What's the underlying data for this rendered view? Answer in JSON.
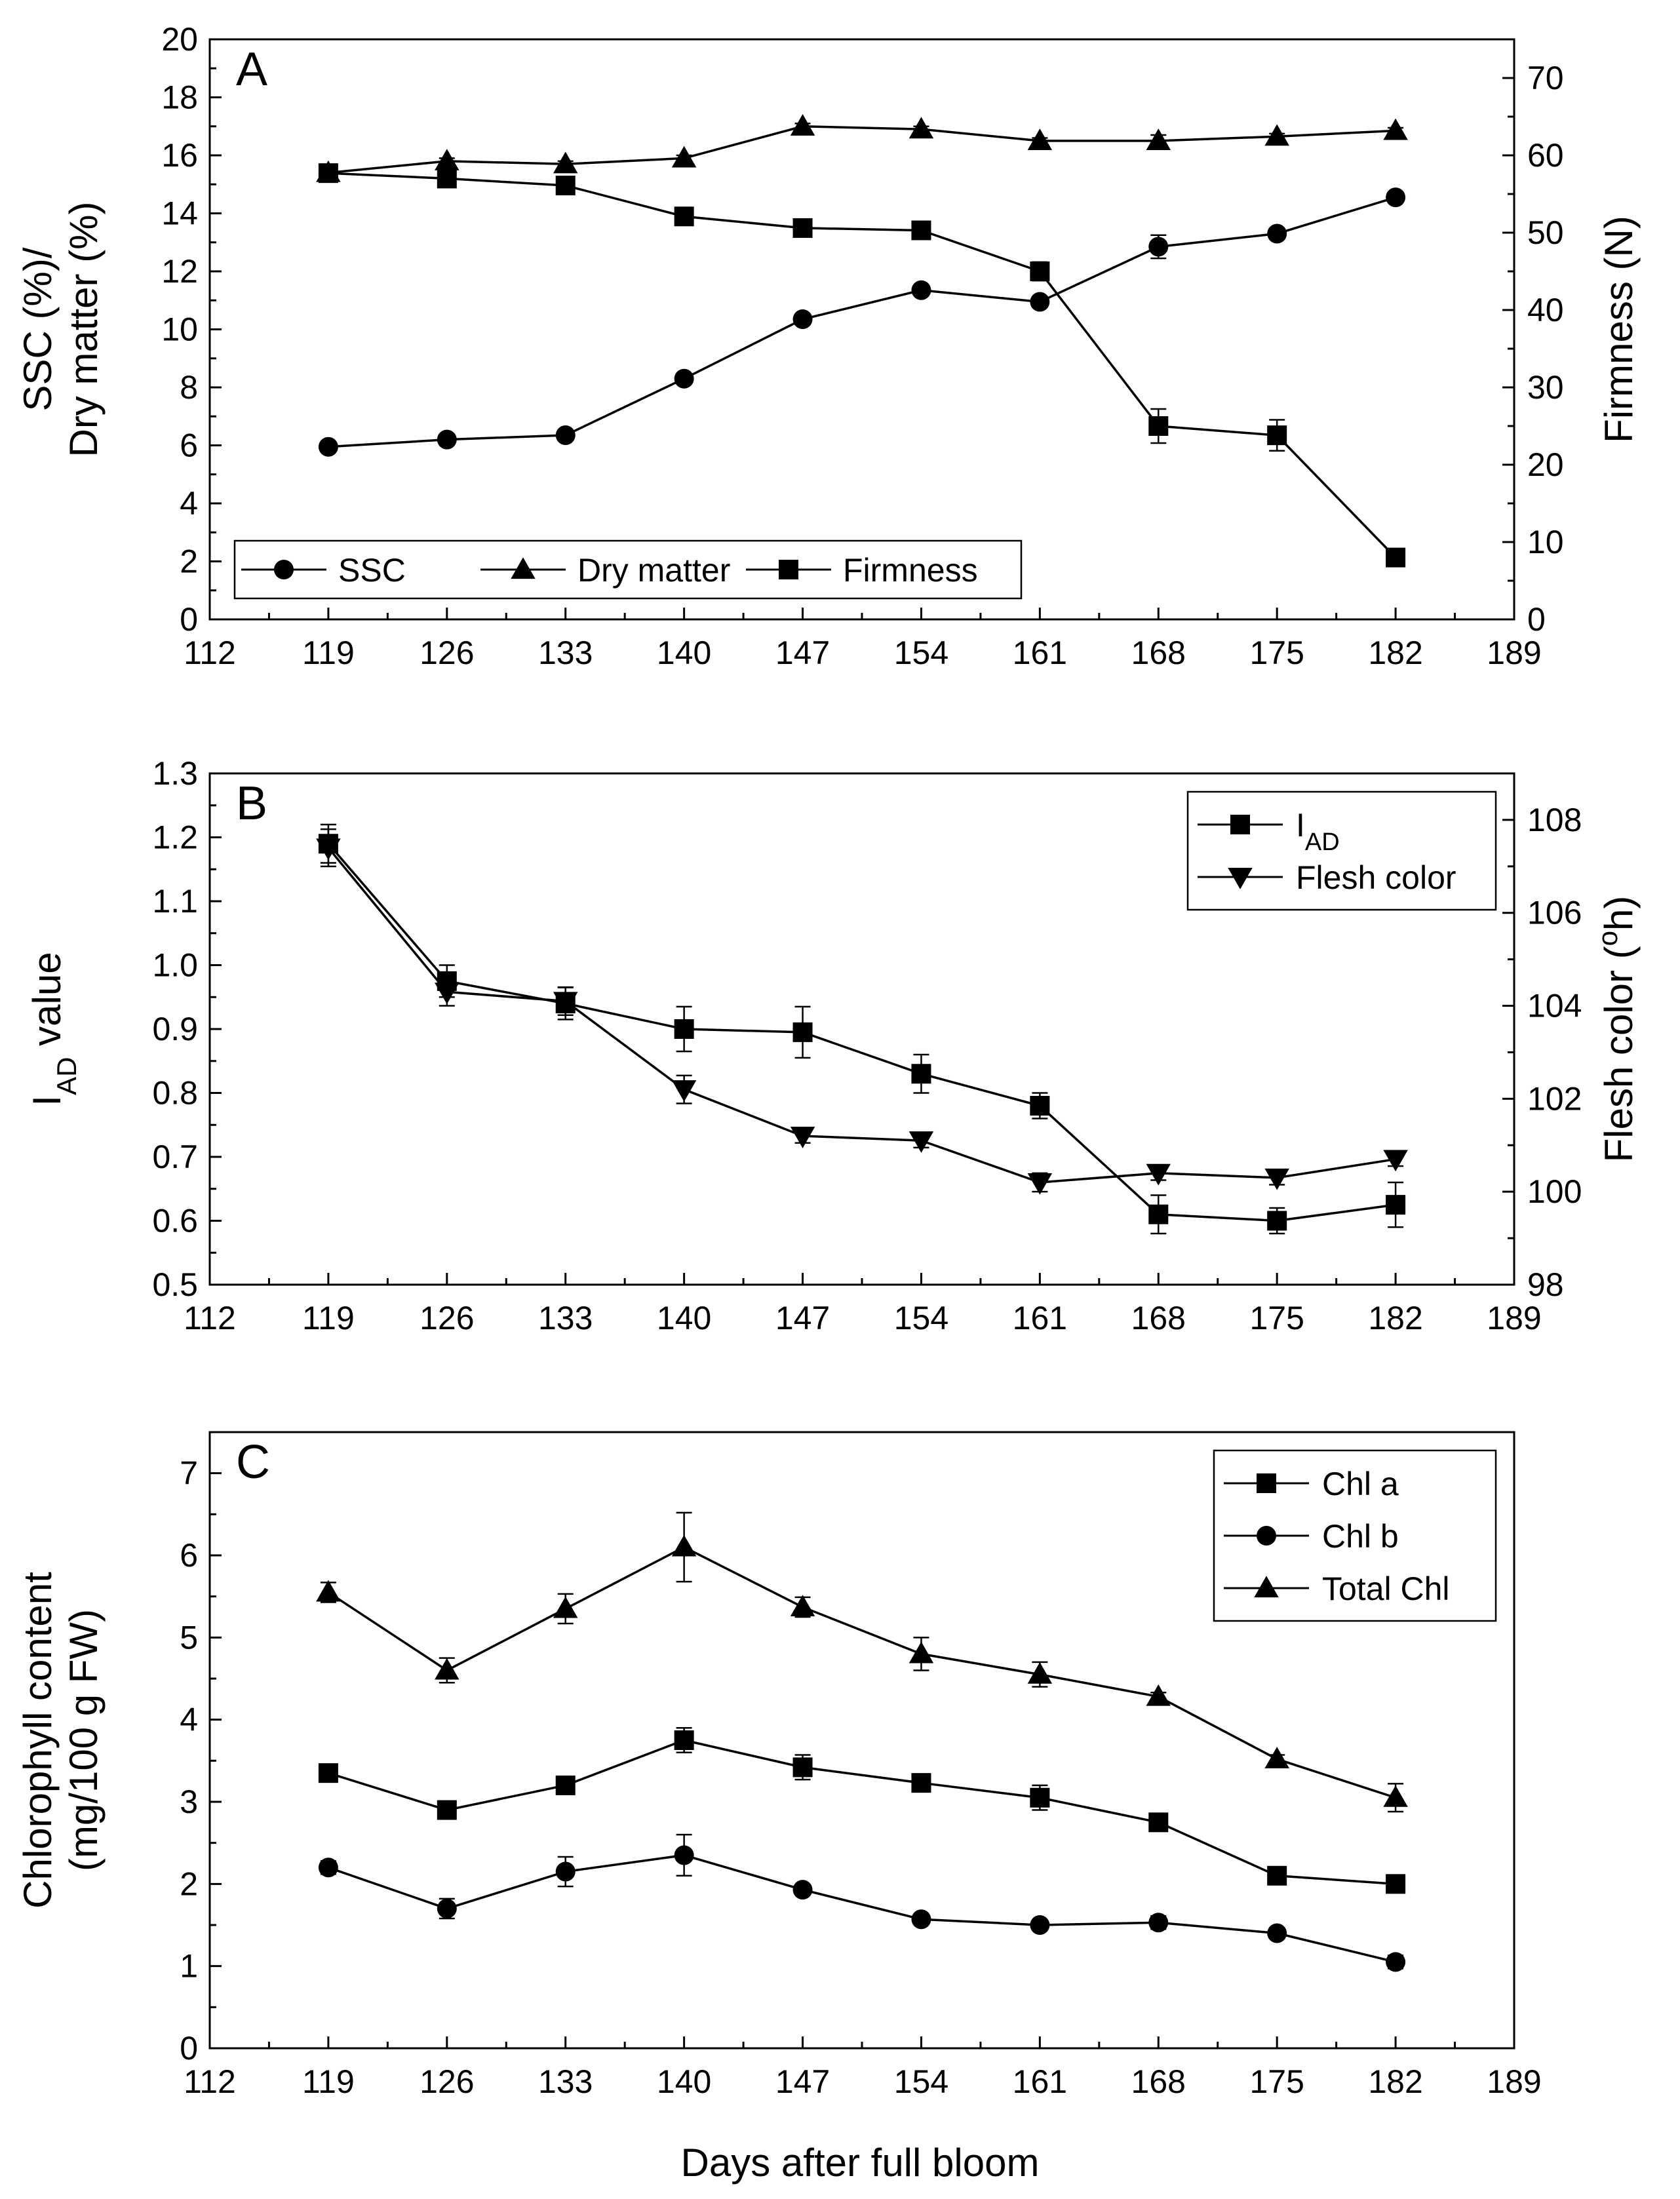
{
  "figure": {
    "shared_xlabel": "Days after full bloom"
  },
  "chart_data": [
    {
      "type": "line",
      "panel": "A",
      "x": [
        119,
        126,
        133,
        140,
        147,
        154,
        161,
        168,
        175,
        182
      ],
      "xlim": [
        112,
        189
      ],
      "xticks": [
        112,
        119,
        126,
        133,
        140,
        147,
        154,
        161,
        168,
        175,
        182,
        189
      ],
      "ylabel_lines": [
        "SSC (%)/",
        "Dry matter (%)"
      ],
      "ylim": [
        0,
        20
      ],
      "yticks": [
        0,
        2,
        4,
        6,
        8,
        10,
        12,
        14,
        16,
        18,
        20
      ],
      "y2label": "Firmness (N)",
      "y2lim": [
        0,
        75
      ],
      "y2ticks": [
        0,
        10,
        20,
        30,
        40,
        50,
        60,
        70
      ],
      "legend_position": "bottom-left",
      "legend_layout": "row",
      "series": [
        {
          "name": "SSC",
          "marker": "circle",
          "axis": "left",
          "values": [
            5.95,
            6.2,
            6.35,
            8.3,
            10.35,
            11.35,
            10.95,
            12.85,
            13.3,
            14.55
          ],
          "errors": [
            0.1,
            0.1,
            0.1,
            0.15,
            0.15,
            0.15,
            0.15,
            0.4,
            0.15,
            0.15
          ]
        },
        {
          "name": "Dry matter",
          "marker": "triangle-up",
          "axis": "left",
          "values": [
            15.4,
            15.8,
            15.7,
            15.9,
            17.0,
            16.9,
            16.5,
            16.5,
            16.65,
            16.85
          ],
          "errors": [
            0.1,
            0.1,
            0.1,
            0.1,
            0.1,
            0.1,
            0.1,
            0.2,
            0.1,
            0.1
          ]
        },
        {
          "name": "Firmness",
          "marker": "square",
          "axis": "right",
          "values": [
            57.7,
            57.0,
            56.1,
            52.1,
            50.6,
            50.3,
            45.0,
            25.0,
            23.8,
            8.0
          ],
          "errors": [
            0.5,
            0.5,
            0.5,
            0.5,
            0.5,
            0.5,
            1.2,
            2.2,
            2.0,
            0.5
          ]
        }
      ]
    },
    {
      "type": "line",
      "panel": "B",
      "x": [
        119,
        126,
        133,
        140,
        147,
        154,
        161,
        168,
        175,
        182
      ],
      "xlim": [
        112,
        189
      ],
      "xticks": [
        112,
        119,
        126,
        133,
        140,
        147,
        154,
        161,
        168,
        175,
        182,
        189
      ],
      "ylabel": {
        "main": "I",
        "sub": "AD",
        "rest": " value"
      },
      "ylim": [
        0.5,
        1.3
      ],
      "yticks": [
        "0.5",
        "0.6",
        "0.7",
        "0.8",
        "0.9",
        "1.0",
        "1.1",
        "1.2",
        "1.3"
      ],
      "y2label": {
        "main": "Flesh color (",
        "sup": "o",
        "rest": "h)"
      },
      "y2lim": [
        98,
        109
      ],
      "y2ticks": [
        98,
        100,
        102,
        104,
        106,
        108
      ],
      "legend_position": "top-right",
      "legend_layout": "column",
      "series": [
        {
          "name": "I",
          "name_sub": "AD",
          "marker": "square",
          "axis": "left",
          "values": [
            1.19,
            0.975,
            0.94,
            0.9,
            0.895,
            0.83,
            0.78,
            0.61,
            0.6,
            0.625
          ],
          "errors": [
            0.03,
            0.025,
            0.025,
            0.035,
            0.04,
            0.03,
            0.02,
            0.03,
            0.02,
            0.035
          ]
        },
        {
          "name": "Flesh color",
          "marker": "triangle-down",
          "axis": "right",
          "values": [
            107.4,
            104.3,
            104.1,
            102.2,
            101.2,
            101.1,
            100.2,
            100.4,
            100.3,
            100.7
          ],
          "errors": [
            0.4,
            0.3,
            0.3,
            0.3,
            0.15,
            0.15,
            0.2,
            0.15,
            0.15,
            0.15
          ]
        }
      ]
    },
    {
      "type": "line",
      "panel": "C",
      "x": [
        119,
        126,
        133,
        140,
        147,
        154,
        161,
        168,
        175,
        182
      ],
      "xlim": [
        112,
        189
      ],
      "xticks": [
        112,
        119,
        126,
        133,
        140,
        147,
        154,
        161,
        168,
        175,
        182,
        189
      ],
      "xlabel": "Days after full bloom",
      "ylabel_lines": [
        "Chlorophyll content",
        "(mg/100 g FW)"
      ],
      "ylim": [
        0,
        7.5
      ],
      "yticks": [
        0,
        1,
        2,
        3,
        4,
        5,
        6,
        7
      ],
      "legend_position": "top-right",
      "legend_layout": "column",
      "series": [
        {
          "name": "Chl a",
          "marker": "square",
          "axis": "left",
          "values": [
            3.35,
            2.9,
            3.2,
            3.75,
            3.42,
            3.23,
            3.05,
            2.75,
            2.1,
            2.0
          ],
          "errors": [
            0.08,
            0.08,
            0.08,
            0.15,
            0.15,
            0.1,
            0.15,
            0.08,
            0.08,
            0.08
          ]
        },
        {
          "name": "Chl b",
          "marker": "circle",
          "axis": "left",
          "values": [
            2.2,
            1.7,
            2.15,
            2.35,
            1.93,
            1.57,
            1.5,
            1.53,
            1.4,
            1.05
          ],
          "errors": [
            0.08,
            0.12,
            0.18,
            0.25,
            0.05,
            0.05,
            0.05,
            0.08,
            0.05,
            0.08
          ]
        },
        {
          "name": "Total Chl",
          "marker": "triangle-up",
          "axis": "left",
          "values": [
            5.55,
            4.6,
            5.35,
            6.1,
            5.37,
            4.8,
            4.55,
            4.28,
            3.52,
            3.05
          ],
          "errors": [
            0.12,
            0.15,
            0.18,
            0.42,
            0.12,
            0.2,
            0.15,
            0.05,
            0.05,
            0.17
          ]
        }
      ]
    }
  ]
}
